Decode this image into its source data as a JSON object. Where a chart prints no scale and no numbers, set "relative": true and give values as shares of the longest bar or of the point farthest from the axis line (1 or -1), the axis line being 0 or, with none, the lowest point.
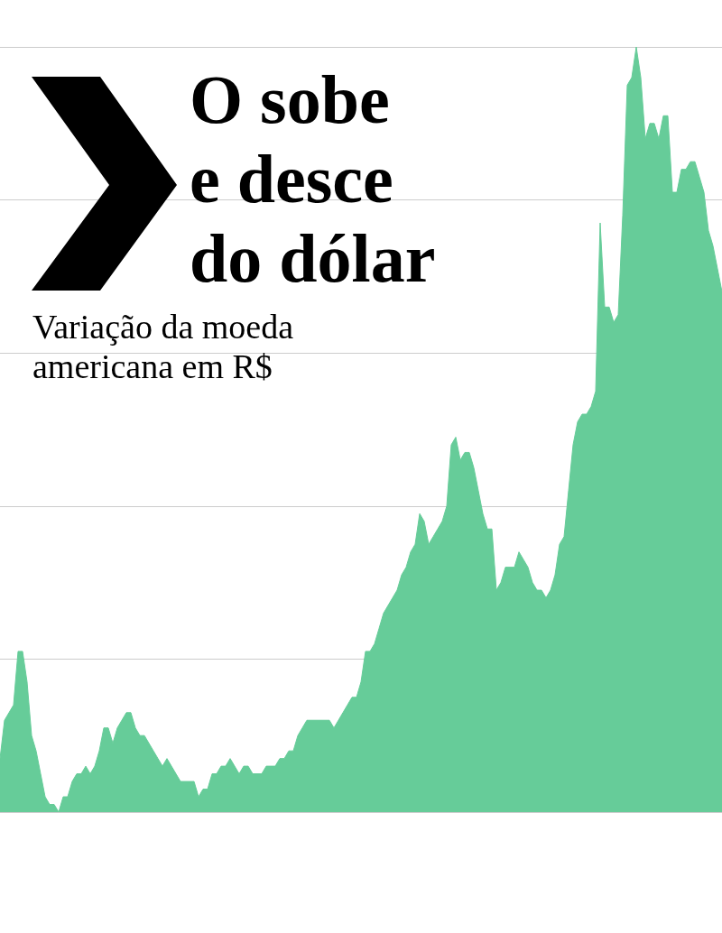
{
  "chart_data": {
    "type": "area",
    "title": "O sobe\ne desce\ndo dólar",
    "subtitle": "Variação da moeda\namericana em R$",
    "relative": true,
    "grid": "y",
    "color": "#66cc99",
    "categories": [
      null,
      null,
      null,
      null,
      null,
      null,
      null,
      null,
      null,
      null,
      null,
      null,
      null,
      null,
      null,
      null,
      null,
      null,
      null,
      null,
      null,
      null,
      null,
      null,
      null,
      null,
      null,
      null,
      null,
      null,
      null,
      null,
      null,
      null,
      null,
      null,
      null,
      null,
      null,
      null,
      null,
      null,
      null,
      null,
      null,
      null,
      null,
      null,
      null,
      null,
      null,
      null,
      null,
      null,
      null,
      null,
      null,
      null,
      null,
      null,
      null,
      null,
      null,
      null,
      null,
      null,
      null,
      null,
      null,
      null,
      null,
      null,
      null,
      null,
      null,
      null,
      null,
      null,
      null,
      null,
      null,
      null,
      null,
      null,
      null,
      null,
      null,
      null,
      null,
      null,
      null,
      null,
      null,
      null,
      null,
      null,
      null,
      null,
      null,
      null,
      null,
      null,
      null,
      null,
      null,
      null,
      null,
      null,
      null,
      null,
      null,
      null,
      null,
      null,
      null,
      null,
      null,
      null,
      null,
      null,
      null,
      null,
      null,
      null,
      null,
      null,
      null,
      null,
      null,
      null,
      null,
      null,
      null,
      null,
      null,
      null,
      null,
      null,
      null,
      null,
      null,
      null,
      null,
      null,
      null,
      null,
      null,
      null,
      null,
      null,
      null,
      null,
      null,
      null,
      null,
      null,
      null,
      null,
      null,
      null,
      null
    ],
    "values": [
      0.07,
      0.12,
      0.13,
      0.14,
      0.21,
      0.21,
      0.17,
      0.1,
      0.08,
      0.05,
      0.02,
      0.01,
      0.01,
      0,
      0.02,
      0.02,
      0.04,
      0.05,
      0.05,
      0.06,
      0.05,
      0.06,
      0.08,
      0.11,
      0.11,
      0.09,
      0.11,
      0.12,
      0.13,
      0.13,
      0.11,
      0.1,
      0.1,
      0.09,
      0.08,
      0.07,
      0.06,
      0.07,
      0.06,
      0.05,
      0.04,
      0.04,
      0.04,
      0.04,
      0.02,
      0.03,
      0.03,
      0.05,
      0.05,
      0.06,
      0.06,
      0.07,
      0.06,
      0.05,
      0.06,
      0.06,
      0.05,
      0.05,
      0.05,
      0.06,
      0.06,
      0.06,
      0.07,
      0.07,
      0.08,
      0.08,
      0.1,
      0.11,
      0.12,
      0.12,
      0.12,
      0.12,
      0.12,
      0.12,
      0.11,
      0.12,
      0.13,
      0.14,
      0.15,
      0.15,
      0.17,
      0.21,
      0.21,
      0.22,
      0.24,
      0.26,
      0.27,
      0.28,
      0.29,
      0.31,
      0.32,
      0.34,
      0.35,
      0.39,
      0.38,
      0.35,
      0.36,
      0.37,
      0.38,
      0.4,
      0.48,
      0.49,
      0.46,
      0.47,
      0.47,
      0.45,
      0.42,
      0.39,
      0.37,
      0.37,
      0.29,
      0.3,
      0.32,
      0.32,
      0.32,
      0.34,
      0.33,
      0.32,
      0.3,
      0.29,
      0.29,
      0.28,
      0.29,
      0.31,
      0.35,
      0.36,
      0.42,
      0.48,
      0.51,
      0.52,
      0.52,
      0.53,
      0.55,
      0.77,
      0.66,
      0.66,
      0.64,
      0.65,
      0.78,
      0.95,
      0.96,
      1,
      0.96,
      0.88,
      0.9,
      0.9,
      0.88,
      0.91,
      0.91,
      0.81,
      0.81,
      0.84,
      0.84,
      0.85,
      0.85,
      0.83,
      0.81,
      0.76,
      0.74,
      0.71,
      0.68
    ]
  }
}
